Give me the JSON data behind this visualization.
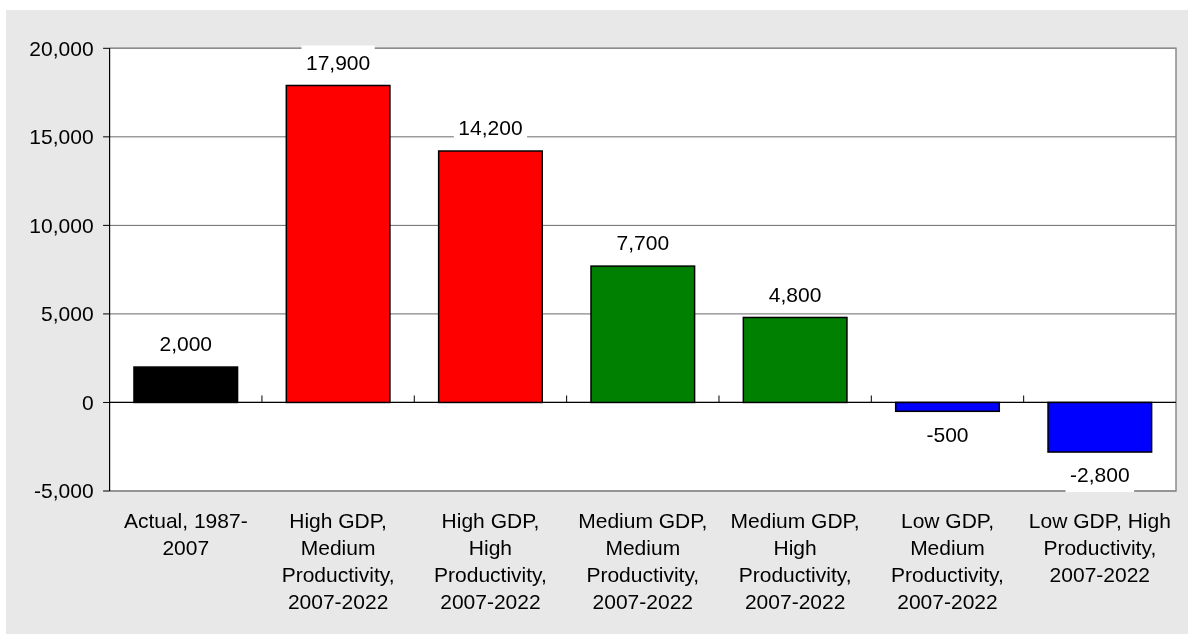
{
  "chart_data": {
    "type": "bar",
    "categories": [
      "Actual, 1987-2007",
      "High GDP, Medium Productivity, 2007-2022",
      "High GDP, High Productivity, 2007-2022",
      "Medium GDP, Medium Productivity, 2007-2022",
      "Medium GDP, High Productivity, 2007-2022",
      "Low GDP, Medium Productivity, 2007-2022",
      "Low GDP, High Productivity, 2007-2022"
    ],
    "values": [
      2000,
      17900,
      14200,
      7700,
      4800,
      -500,
      -2800
    ],
    "value_labels": [
      "2,000",
      "17,900",
      "14,200",
      "7,700",
      "4,800",
      "-500",
      "-2,800"
    ],
    "colors": [
      "#000000",
      "#ff0000",
      "#ff0000",
      "#008000",
      "#008000",
      "#0000ff",
      "#0000ff"
    ],
    "ylim": [
      -5000,
      20000
    ],
    "yticks": [
      {
        "value": -5000,
        "label": "-5,000"
      },
      0,
      {
        "value": 5000,
        "label": "5,000"
      },
      {
        "value": 10000,
        "label": "10,000"
      },
      {
        "value": 15000,
        "label": "15,000"
      },
      {
        "value": 20000,
        "label": "20,000"
      }
    ],
    "grid": "y"
  }
}
